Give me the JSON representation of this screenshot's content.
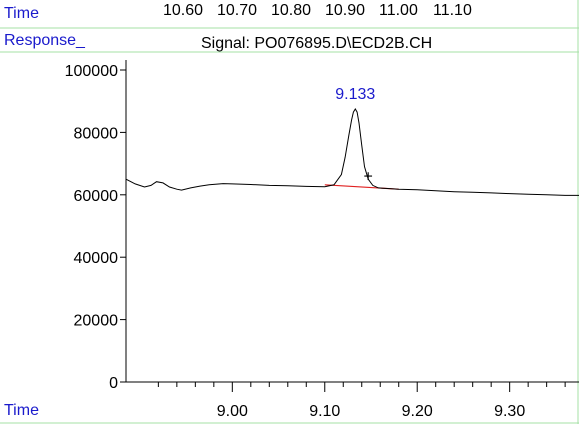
{
  "header": {
    "time_label": "Time",
    "top_ticks": [
      "10.60",
      "10.70",
      "10.80",
      "10.90",
      "11.00",
      "11.10"
    ],
    "response_label": "Response_",
    "signal_label": "Signal: PO076895.D\\ECD2B.CH",
    "bottom_time_label": "Time"
  },
  "colors": {
    "label_blue": "#1a1acc",
    "trace": "#000000",
    "baseline": "#e02020",
    "frame_green": "#a6e0a6"
  },
  "chart_data": {
    "type": "line",
    "title": "Signal: PO076895.D\\ECD2B.CH",
    "xlabel": "Time",
    "ylabel": "Response_",
    "xlim": [
      8.885,
      9.375
    ],
    "ylim": [
      0,
      100000
    ],
    "x_ticks": [
      "9.00",
      "9.10",
      "9.20",
      "9.30"
    ],
    "y_ticks": [
      "0",
      "20000",
      "40000",
      "60000",
      "80000",
      "100000"
    ],
    "grid": false,
    "series": [
      {
        "x": [
          8.885,
          8.895,
          8.905,
          8.912,
          8.918,
          8.925,
          8.932,
          8.94,
          8.945,
          8.955,
          8.965,
          8.975,
          8.99,
          9.0,
          9.02,
          9.04,
          9.06,
          9.08,
          9.1,
          9.11,
          9.118,
          9.122,
          9.126,
          9.129,
          9.131,
          9.133,
          9.135,
          9.137,
          9.14,
          9.143,
          9.147,
          9.152,
          9.158,
          9.17,
          9.18,
          9.2,
          9.22,
          9.24,
          9.26,
          9.28,
          9.3,
          9.32,
          9.34,
          9.36,
          9.375
        ],
        "y": [
          65000,
          63500,
          62500,
          63000,
          64200,
          63800,
          62500,
          61800,
          61500,
          62200,
          62800,
          63200,
          63600,
          63500,
          63300,
          63000,
          62900,
          62700,
          62600,
          63200,
          66500,
          72000,
          79000,
          84000,
          86500,
          87500,
          86500,
          83000,
          76000,
          69000,
          65000,
          63000,
          62200,
          62000,
          61800,
          61600,
          61300,
          61000,
          60800,
          60600,
          60400,
          60200,
          60000,
          59800,
          59800
        ]
      }
    ],
    "baseline": {
      "x": [
        9.1,
        9.18
      ],
      "y": [
        63200,
        61800
      ]
    },
    "peaks": [
      {
        "label": "9.133",
        "x": 9.133,
        "y": 87500
      }
    ],
    "marker": {
      "symbol": "+",
      "x": 9.147,
      "y": 65800
    }
  }
}
